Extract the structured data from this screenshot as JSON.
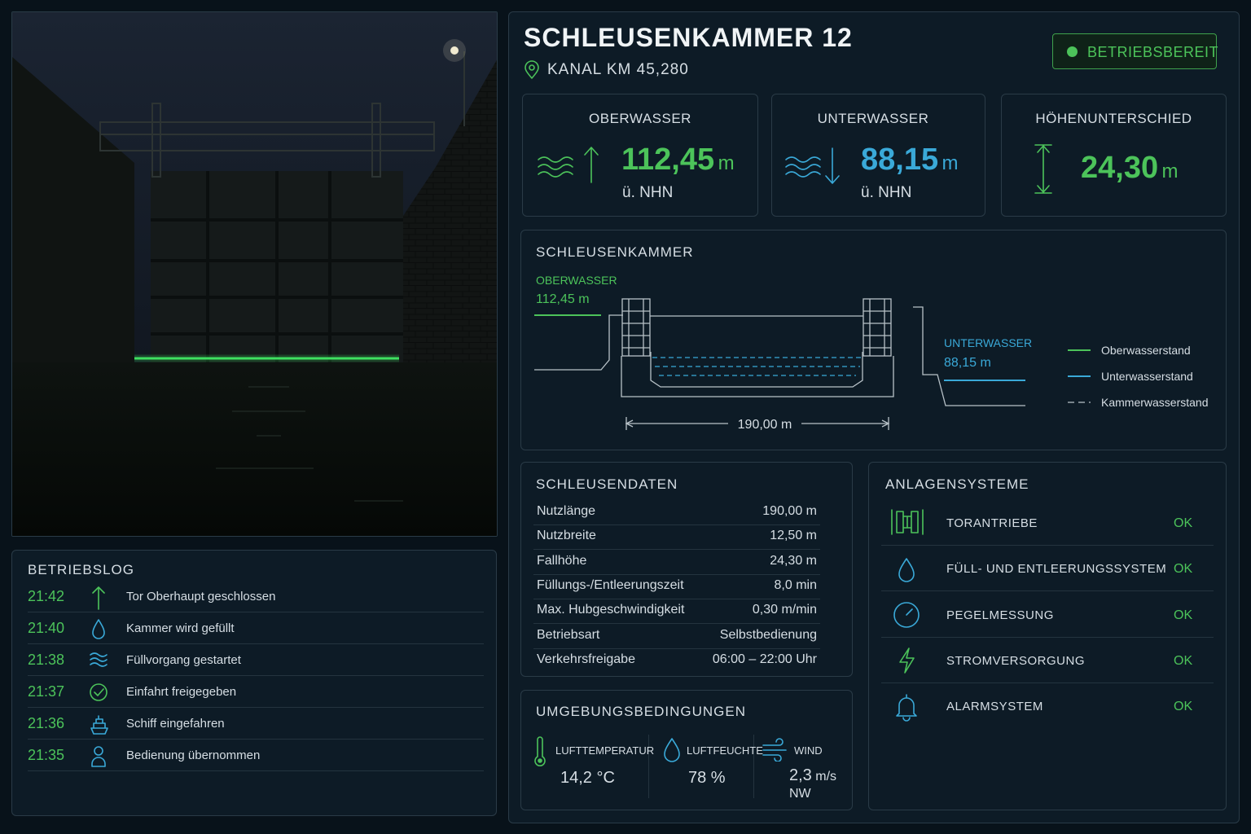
{
  "header": {
    "title": "SCHLEUSENKAMMER 12",
    "location": "KANAL KM 45,280",
    "status": "BETRIEBSBEREIT"
  },
  "levels": [
    {
      "label": "OBERWASSER",
      "value": "112,45",
      "unit": "m",
      "ref": "ü. NHN"
    },
    {
      "label": "UNTERWASSER",
      "value": "88,15",
      "unit": "m",
      "ref": "ü. NHN"
    },
    {
      "label": "HÖHENUNTERSCHIED",
      "value": "24,30",
      "unit": "m"
    }
  ],
  "chamber": {
    "title": "SCHLEUSENKAMMER",
    "upper_label": "OBERWASSER",
    "upper_value": "112,45 m",
    "lower_label": "UNTERWASSER",
    "lower_value": "88,15 m",
    "length": "190,00 m",
    "legend": [
      "Oberwasserstand",
      "Unterwasserstand",
      "Kammerwasserstand"
    ]
  },
  "log": {
    "title": "BETRIEBSLOG",
    "entries": [
      {
        "time": "21:42",
        "text": "Tor Oberhaupt geschlossen"
      },
      {
        "time": "21:40",
        "text": "Kammer wird gefüllt"
      },
      {
        "time": "21:38",
        "text": "Füllvorgang gestartet"
      },
      {
        "time": "21:37",
        "text": "Einfahrt freigegeben"
      },
      {
        "time": "21:36",
        "text": "Schiff eingefahren"
      },
      {
        "time": "21:35",
        "text": "Bedienung übernommen"
      }
    ]
  },
  "lock_data": {
    "title": "SCHLEUSENDATEN",
    "rows": [
      [
        "Nutzlänge",
        "190,00 m"
      ],
      [
        "Nutzbreite",
        "12,50 m"
      ],
      [
        "Fallhöhe",
        "24,30 m"
      ],
      [
        "Füllungs-/Entleerungszeit",
        "8,0 min"
      ],
      [
        "Max. Hubgeschwindigkeit",
        "0,30 m/min"
      ],
      [
        "Betriebsart",
        "Selbstbedienung"
      ],
      [
        "Verkehrsfreigabe",
        "06:00 – 22:00 Uhr"
      ]
    ]
  },
  "environment": {
    "title": "UMGEBUNGSBEDINGUNGEN",
    "items": [
      {
        "label": "LUFTTEMPERATUR",
        "value": "14,2 °C"
      },
      {
        "label": "LUFTFEUCHTE",
        "value": "78 %"
      },
      {
        "label": "WIND",
        "value": "2,3",
        "unit": "m/s",
        "direction": "NW"
      }
    ]
  },
  "systems": {
    "title": "ANLAGENSYSTEME",
    "items": [
      {
        "name": "TORANTRIEBE",
        "status": "OK"
      },
      {
        "name": "FÜLL- UND ENTLEERUNGSSYSTEM",
        "status": "OK"
      },
      {
        "name": "PEGELMESSUNG",
        "status": "OK"
      },
      {
        "name": "STROMVERSORGUNG",
        "status": "OK"
      },
      {
        "name": "ALARMSYSTEM",
        "status": "OK"
      }
    ]
  }
}
